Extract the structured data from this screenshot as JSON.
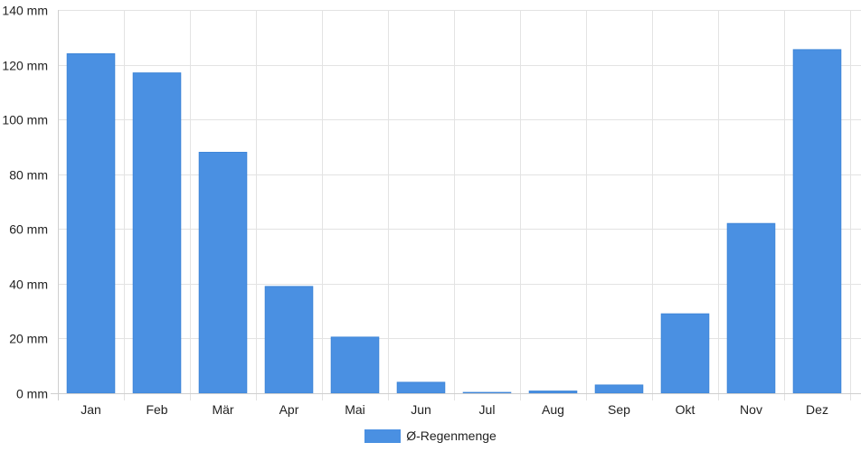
{
  "chart_data": {
    "type": "bar",
    "categories": [
      "Jan",
      "Feb",
      "Mär",
      "Apr",
      "Mai",
      "Jun",
      "Jul",
      "Aug",
      "Sep",
      "Okt",
      "Nov",
      "Dez"
    ],
    "series": [
      {
        "name": "Ø-Regenmenge",
        "values": [
          124,
          117,
          88,
          39,
          20.5,
          4,
          0.3,
          0.8,
          3,
          29,
          62,
          125.5
        ],
        "color": "#4a90e2"
      }
    ],
    "yticks": [
      0,
      20,
      40,
      60,
      80,
      100,
      120,
      140
    ],
    "ytick_unit": " mm",
    "ylim": [
      0,
      140
    ],
    "grid": true,
    "legend_position": "bottom"
  }
}
